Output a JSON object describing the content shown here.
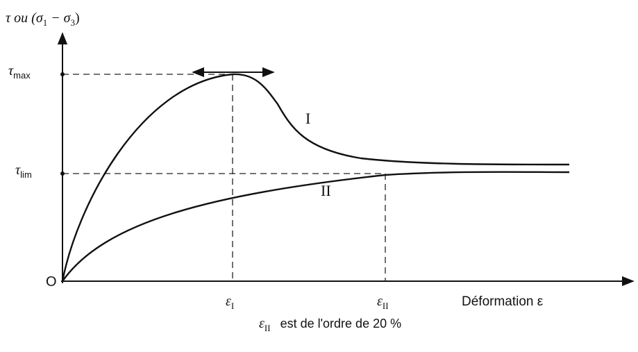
{
  "y_axis_label": {
    "parts": [
      "τ ou (σ",
      "1",
      " − σ",
      "3",
      ")"
    ]
  },
  "tau_max": {
    "base": "τ",
    "sub": "max"
  },
  "tau_lim": {
    "base": "τ",
    "sub": "lim"
  },
  "origin": "O",
  "eps_1": {
    "base": "ε",
    "sub": "I"
  },
  "eps_2": {
    "base": "ε",
    "sub": "II"
  },
  "x_axis_label": "Déformation ε",
  "curves": [
    "I",
    "II"
  ],
  "note": {
    "base": "ε",
    "sub": "II",
    "text": "est de l'ordre de 20 %"
  }
}
